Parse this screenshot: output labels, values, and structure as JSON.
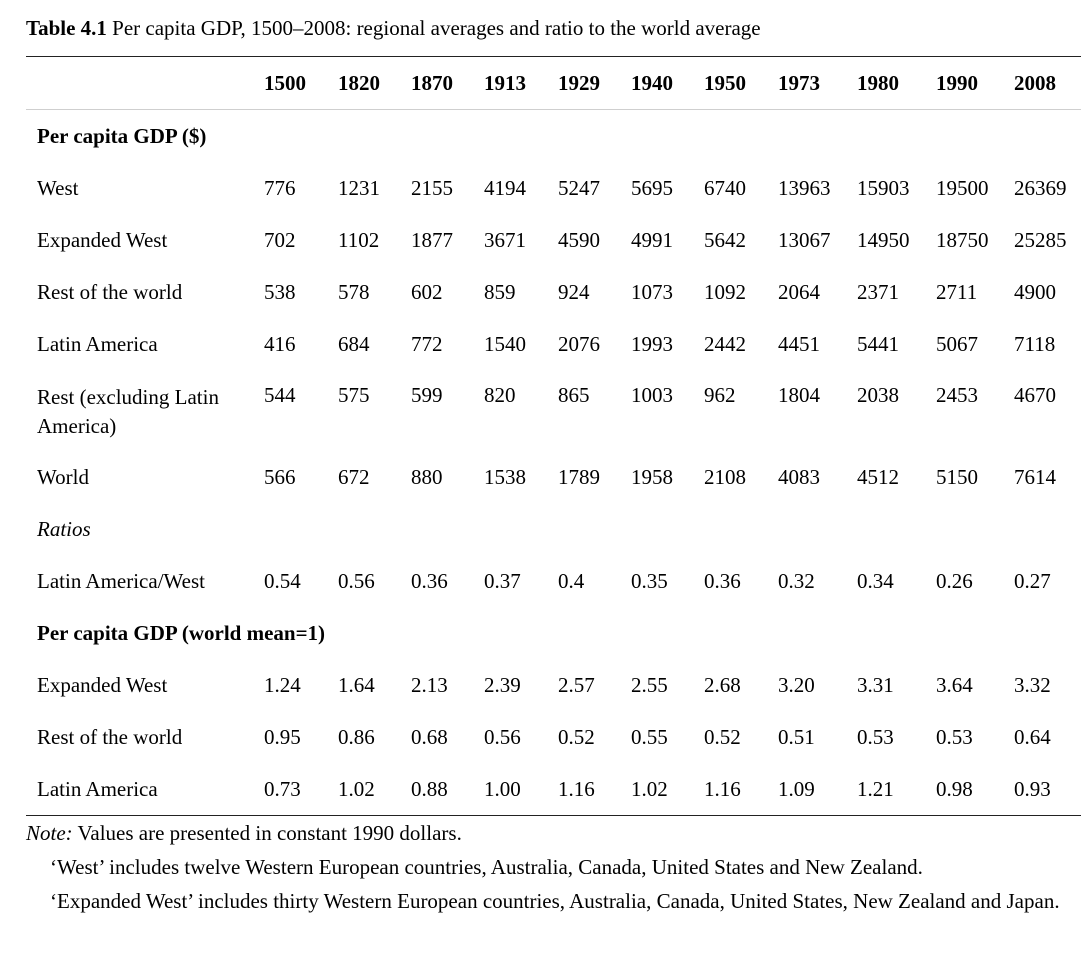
{
  "caption": {
    "label": "Table 4.1",
    "text": "Per capita GDP, 1500–2008: regional averages and ratio to the world average"
  },
  "years": [
    "1500",
    "1820",
    "1870",
    "1913",
    "1929",
    "1940",
    "1950",
    "1973",
    "1980",
    "1990",
    "2008"
  ],
  "sections": [
    {
      "title": "Per capita GDP ($)",
      "italic": false,
      "rows": [
        {
          "label": "West",
          "values": [
            "776",
            "1231",
            "2155",
            "4194",
            "5247",
            "5695",
            "6740",
            "13963",
            "15903",
            "19500",
            "26369"
          ]
        },
        {
          "label": "Expanded West",
          "values": [
            "702",
            "1102",
            "1877",
            "3671",
            "4590",
            "4991",
            "5642",
            "13067",
            "14950",
            "18750",
            "25285"
          ]
        },
        {
          "label": "Rest of the world",
          "values": [
            "538",
            "578",
            "602",
            "859",
            "924",
            "1073",
            "1092",
            "2064",
            "2371",
            "2711",
            "4900"
          ]
        },
        {
          "label": "Latin America",
          "values": [
            "416",
            "684",
            "772",
            "1540",
            "2076",
            "1993",
            "2442",
            "4451",
            "5441",
            "5067",
            "7118"
          ]
        },
        {
          "label": "Rest (excluding Latin America)",
          "tall": true,
          "values": [
            "544",
            "575",
            "599",
            "820",
            "865",
            "1003",
            "962",
            "1804",
            "2038",
            "2453",
            "4670"
          ]
        },
        {
          "label": "World",
          "values": [
            "566",
            "672",
            "880",
            "1538",
            "1789",
            "1958",
            "2108",
            "4083",
            "4512",
            "5150",
            "7614"
          ]
        }
      ]
    },
    {
      "title": "Ratios",
      "italic": true,
      "rows": [
        {
          "label": "Latin America/West",
          "values": [
            "0.54",
            "0.56",
            "0.36",
            "0.37",
            "0.4",
            "0.35",
            "0.36",
            "0.32",
            "0.34",
            "0.26",
            "0.27"
          ]
        }
      ]
    },
    {
      "title": "Per capita GDP (world mean=1)",
      "italic": false,
      "rows": [
        {
          "label": "Expanded West",
          "values": [
            "1.24",
            "1.64",
            "2.13",
            "2.39",
            "2.57",
            "2.55",
            "2.68",
            "3.20",
            "3.31",
            "3.64",
            "3.32"
          ]
        },
        {
          "label": "Rest of the world",
          "values": [
            "0.95",
            "0.86",
            "0.68",
            "0.56",
            "0.52",
            "0.55",
            "0.52",
            "0.51",
            "0.53",
            "0.53",
            "0.64"
          ]
        },
        {
          "label": "Latin America",
          "values": [
            "0.73",
            "1.02",
            "0.88",
            "1.00",
            "1.16",
            "1.02",
            "1.16",
            "1.09",
            "1.21",
            "0.98",
            "0.93"
          ]
        }
      ]
    }
  ],
  "notes": {
    "lead": "Note:",
    "line1": "Values are presented in constant 1990 dollars.",
    "line2": "‘West’ includes twelve Western European countries, Australia, Canada, United States and New Zealand.",
    "line3": "‘Expanded West’ includes thirty Western European countries, Australia, Canada, United States, New Zealand and Japan."
  }
}
